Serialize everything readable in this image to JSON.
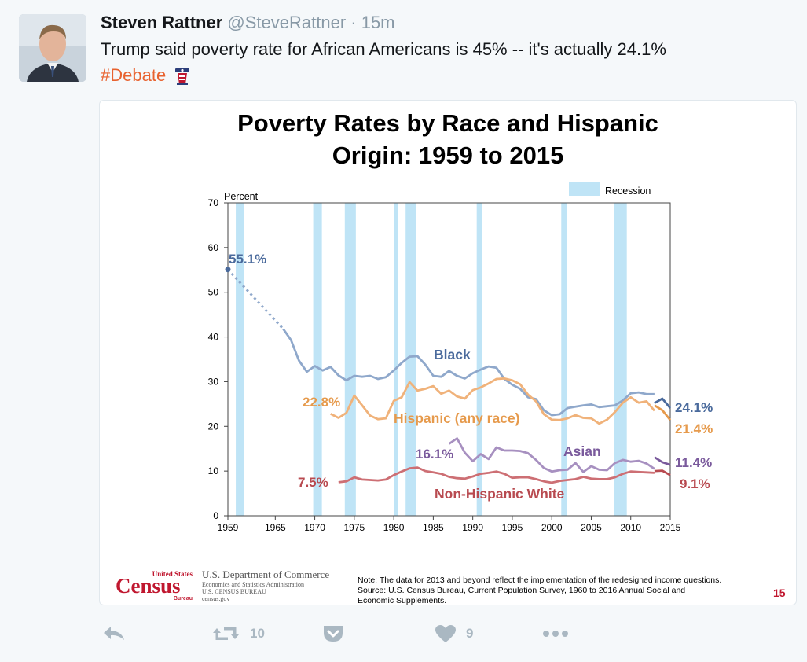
{
  "tweet": {
    "author_name": "Steven Rattner",
    "handle": "@SteveRattner",
    "time": "· 15m",
    "text": "Trump said poverty rate for African Americans is 45% -- it's actually 24.1%",
    "hashtag": "#Debate"
  },
  "card": {
    "title_line1": "Poverty Rates by Race and Hispanic",
    "title_line2": "Origin: 1959 to 2015",
    "dept_line1": "U.S. Department of Commerce",
    "dept_line2": "Economics and Statistics Administration",
    "dept_line3": "U.S. CENSUS BUREAU",
    "dept_line4": "census.gov",
    "logo_top": "United States",
    "logo_main": "Census",
    "logo_bottom": "Bureau",
    "note_line1": "Note: The data for 2013 and beyond reflect the implementation of the redesigned income questions.",
    "note_line2": "Source: U.S. Census Bureau, Current Population Survey, 1960 to 2016 Annual Social and",
    "note_line3": "Economic Supplements.",
    "page_number": "15"
  },
  "actions": {
    "retweet_count": "10",
    "like_count": "9"
  },
  "colors": {
    "hashtag": "#e8622f",
    "black_series": "#8fa8cb",
    "black_label": "#4a6a9c",
    "hispanic": "#f0b27a",
    "hispanic_label": "#e69a4c",
    "asian": "#a790c0",
    "asian_label": "#7a5a9c",
    "white": "#cd6f74",
    "white_label": "#b84a50",
    "recession": "#bfe4f6",
    "census_red": "#c0172f"
  },
  "chart_data": {
    "type": "line",
    "ylabel": "Percent",
    "ylim": [
      0,
      70
    ],
    "yticks": [
      0,
      10,
      20,
      30,
      40,
      50,
      60,
      70
    ],
    "xlim": [
      1959,
      2015
    ],
    "xticks": [
      1959,
      1965,
      1970,
      1975,
      1980,
      1985,
      1990,
      1995,
      2000,
      2005,
      2010,
      2015
    ],
    "legend": "Recession",
    "recessions": [
      [
        1960,
        1961
      ],
      [
        1969.8,
        1970.9
      ],
      [
        1973.8,
        1975.2
      ],
      [
        1980,
        1980.5
      ],
      [
        1981.5,
        1982.8
      ],
      [
        1990.5,
        1991.2
      ],
      [
        2001.2,
        2001.9
      ],
      [
        2007.9,
        2009.5
      ]
    ],
    "series": [
      {
        "name": "Black",
        "key": "black",
        "points": [
          [
            1966,
            41.8
          ],
          [
            1967,
            39.3
          ],
          [
            1968,
            34.7
          ],
          [
            1969,
            32.2
          ],
          [
            1970,
            33.5
          ],
          [
            1971,
            32.5
          ],
          [
            1972,
            33.3
          ],
          [
            1973,
            31.4
          ],
          [
            1974,
            30.3
          ],
          [
            1975,
            31.3
          ],
          [
            1976,
            31.1
          ],
          [
            1977,
            31.3
          ],
          [
            1978,
            30.6
          ],
          [
            1979,
            31.0
          ],
          [
            1980,
            32.5
          ],
          [
            1981,
            34.2
          ],
          [
            1982,
            35.6
          ],
          [
            1983,
            35.7
          ],
          [
            1984,
            33.8
          ],
          [
            1985,
            31.3
          ],
          [
            1986,
            31.1
          ],
          [
            1987,
            32.4
          ],
          [
            1988,
            31.3
          ],
          [
            1989,
            30.7
          ],
          [
            1990,
            31.9
          ],
          [
            1991,
            32.7
          ],
          [
            1992,
            33.4
          ],
          [
            1993,
            33.1
          ],
          [
            1994,
            30.6
          ],
          [
            1995,
            29.3
          ],
          [
            1996,
            28.4
          ],
          [
            1997,
            26.5
          ],
          [
            1998,
            26.1
          ],
          [
            1999,
            23.6
          ],
          [
            2000,
            22.5
          ],
          [
            2001,
            22.7
          ],
          [
            2002,
            24.1
          ],
          [
            2003,
            24.4
          ],
          [
            2004,
            24.7
          ],
          [
            2005,
            24.9
          ],
          [
            2006,
            24.3
          ],
          [
            2007,
            24.5
          ],
          [
            2008,
            24.7
          ],
          [
            2009,
            25.8
          ],
          [
            2010,
            27.4
          ],
          [
            2011,
            27.6
          ],
          [
            2012,
            27.2
          ],
          [
            2013,
            27.2
          ]
        ],
        "points_redesign": [
          [
            2013,
            25.2
          ],
          [
            2014,
            26.2
          ],
          [
            2015,
            24.1
          ]
        ],
        "first_value": "55.1%",
        "last_value": "24.1%"
      },
      {
        "name": "Hispanic (any race)",
        "key": "hispanic",
        "points": [
          [
            1972,
            22.8
          ],
          [
            1973,
            21.9
          ],
          [
            1974,
            23.0
          ],
          [
            1975,
            26.9
          ],
          [
            1976,
            24.7
          ],
          [
            1977,
            22.4
          ],
          [
            1978,
            21.6
          ],
          [
            1979,
            21.8
          ],
          [
            1980,
            25.7
          ],
          [
            1981,
            26.5
          ],
          [
            1982,
            29.9
          ],
          [
            1983,
            28.0
          ],
          [
            1984,
            28.4
          ],
          [
            1985,
            29.0
          ],
          [
            1986,
            27.3
          ],
          [
            1987,
            28.0
          ],
          [
            1988,
            26.7
          ],
          [
            1989,
            26.2
          ],
          [
            1990,
            28.1
          ],
          [
            1991,
            28.7
          ],
          [
            1992,
            29.6
          ],
          [
            1993,
            30.6
          ],
          [
            1994,
            30.7
          ],
          [
            1995,
            30.3
          ],
          [
            1996,
            29.4
          ],
          [
            1997,
            27.1
          ],
          [
            1998,
            25.6
          ],
          [
            1999,
            22.7
          ],
          [
            2000,
            21.5
          ],
          [
            2001,
            21.4
          ],
          [
            2002,
            21.8
          ],
          [
            2003,
            22.5
          ],
          [
            2004,
            21.9
          ],
          [
            2005,
            21.8
          ],
          [
            2006,
            20.6
          ],
          [
            2007,
            21.5
          ],
          [
            2008,
            23.2
          ],
          [
            2009,
            25.3
          ],
          [
            2010,
            26.5
          ],
          [
            2011,
            25.3
          ],
          [
            2012,
            25.6
          ],
          [
            2013,
            23.5
          ]
        ],
        "points_redesign": [
          [
            2013,
            24.7
          ],
          [
            2014,
            23.6
          ],
          [
            2015,
            21.4
          ]
        ],
        "first_value": "22.8%",
        "last_value": "21.4%"
      },
      {
        "name": "Asian",
        "key": "asian",
        "points": [
          [
            1987,
            16.1
          ],
          [
            1988,
            17.3
          ],
          [
            1989,
            14.1
          ],
          [
            1990,
            12.2
          ],
          [
            1991,
            13.8
          ],
          [
            1992,
            12.7
          ],
          [
            1993,
            15.3
          ],
          [
            1994,
            14.6
          ],
          [
            1995,
            14.6
          ],
          [
            1996,
            14.5
          ],
          [
            1997,
            14.0
          ],
          [
            1998,
            12.5
          ],
          [
            1999,
            10.7
          ],
          [
            2000,
            9.9
          ],
          [
            2001,
            10.2
          ],
          [
            2002,
            10.3
          ],
          [
            2003,
            11.8
          ],
          [
            2004,
            9.8
          ],
          [
            2005,
            11.1
          ],
          [
            2006,
            10.3
          ],
          [
            2007,
            10.2
          ],
          [
            2008,
            11.8
          ],
          [
            2009,
            12.5
          ],
          [
            2010,
            12.1
          ],
          [
            2011,
            12.3
          ],
          [
            2012,
            11.7
          ],
          [
            2013,
            10.5
          ]
        ],
        "points_redesign": [
          [
            2013,
            13.1
          ],
          [
            2014,
            12.0
          ],
          [
            2015,
            11.4
          ]
        ],
        "first_value": "16.1%",
        "last_value": "11.4%"
      },
      {
        "name": "Non-Hispanic White",
        "key": "white",
        "points": [
          [
            1973,
            7.5
          ],
          [
            1974,
            7.7
          ],
          [
            1975,
            8.6
          ],
          [
            1976,
            8.1
          ],
          [
            1977,
            8.0
          ],
          [
            1978,
            7.9
          ],
          [
            1979,
            8.1
          ],
          [
            1980,
            9.1
          ],
          [
            1981,
            9.9
          ],
          [
            1982,
            10.6
          ],
          [
            1983,
            10.8
          ],
          [
            1984,
            10.0
          ],
          [
            1985,
            9.7
          ],
          [
            1986,
            9.4
          ],
          [
            1987,
            8.7
          ],
          [
            1988,
            8.4
          ],
          [
            1989,
            8.3
          ],
          [
            1990,
            8.8
          ],
          [
            1991,
            9.4
          ],
          [
            1992,
            9.6
          ],
          [
            1993,
            9.9
          ],
          [
            1994,
            9.4
          ],
          [
            1995,
            8.5
          ],
          [
            1996,
            8.6
          ],
          [
            1997,
            8.6
          ],
          [
            1998,
            8.2
          ],
          [
            1999,
            7.7
          ],
          [
            2000,
            7.4
          ],
          [
            2001,
            7.8
          ],
          [
            2002,
            8.0
          ],
          [
            2003,
            8.2
          ],
          [
            2004,
            8.7
          ],
          [
            2005,
            8.3
          ],
          [
            2006,
            8.2
          ],
          [
            2007,
            8.2
          ],
          [
            2008,
            8.6
          ],
          [
            2009,
            9.4
          ],
          [
            2010,
            9.9
          ],
          [
            2011,
            9.8
          ],
          [
            2012,
            9.7
          ],
          [
            2013,
            9.6
          ]
        ],
        "points_redesign": [
          [
            2013,
            10.0
          ],
          [
            2014,
            10.1
          ],
          [
            2015,
            9.1
          ]
        ],
        "first_value": "7.5%",
        "last_value": "9.1%"
      }
    ],
    "black_1959": 55.1
  }
}
